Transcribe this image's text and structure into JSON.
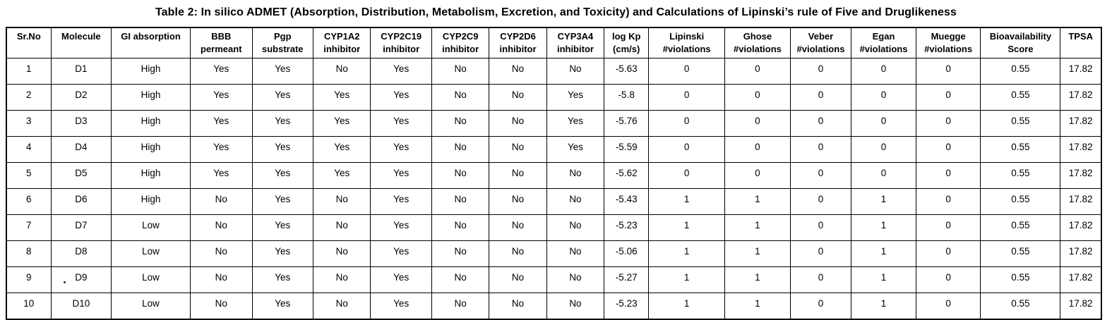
{
  "caption": "Table 2: In silico ADMET (Absorption, Distribution, Metabolism, Excretion, and Toxicity) and Calculations of Lipinski’s rule of Five and Druglikeness",
  "table": {
    "columns": [
      {
        "lines": [
          "Sr.No"
        ]
      },
      {
        "lines": [
          "Molecule"
        ]
      },
      {
        "lines": [
          "GI absorption"
        ]
      },
      {
        "lines": [
          "BBB",
          "permeant"
        ]
      },
      {
        "lines": [
          "Pgp",
          "substrate"
        ]
      },
      {
        "lines": [
          "CYP1A2",
          "inhibitor"
        ]
      },
      {
        "lines": [
          "CYP2C19",
          "inhibitor"
        ]
      },
      {
        "lines": [
          "CYP2C9",
          "inhibitor"
        ]
      },
      {
        "lines": [
          "CYP2D6",
          "inhibitor"
        ]
      },
      {
        "lines": [
          "CYP3A4",
          "inhibitor"
        ]
      },
      {
        "lines": [
          "log Kp",
          "(cm/s)"
        ]
      },
      {
        "lines": [
          "Lipinski",
          "#violations"
        ]
      },
      {
        "lines": [
          "Ghose",
          "#violations"
        ]
      },
      {
        "lines": [
          "Veber",
          "#violations"
        ]
      },
      {
        "lines": [
          "Egan",
          "#violations"
        ]
      },
      {
        "lines": [
          "Muegge",
          "#violations"
        ]
      },
      {
        "lines": [
          "Bioavailability",
          "Score"
        ]
      },
      {
        "lines": [
          "TPSA"
        ]
      }
    ],
    "rows": [
      [
        "1",
        "D1",
        "High",
        "Yes",
        "Yes",
        "No",
        "Yes",
        "No",
        "No",
        "No",
        "-5.63",
        "0",
        "0",
        "0",
        "0",
        "0",
        "0.55",
        "17.82"
      ],
      [
        "2",
        "D2",
        "High",
        "Yes",
        "Yes",
        "Yes",
        "Yes",
        "No",
        "No",
        "Yes",
        "-5.8",
        "0",
        "0",
        "0",
        "0",
        "0",
        "0.55",
        "17.82"
      ],
      [
        "3",
        "D3",
        "High",
        "Yes",
        "Yes",
        "Yes",
        "Yes",
        "No",
        "No",
        "Yes",
        "-5.76",
        "0",
        "0",
        "0",
        "0",
        "0",
        "0.55",
        "17.82"
      ],
      [
        "4",
        "D4",
        "High",
        "Yes",
        "Yes",
        "Yes",
        "Yes",
        "No",
        "No",
        "Yes",
        "-5.59",
        "0",
        "0",
        "0",
        "0",
        "0",
        "0.55",
        "17.82"
      ],
      [
        "5",
        "D5",
        "High",
        "Yes",
        "Yes",
        "Yes",
        "Yes",
        "No",
        "No",
        "No",
        "-5.62",
        "0",
        "0",
        "0",
        "0",
        "0",
        "0.55",
        "17.82"
      ],
      [
        "6",
        "D6",
        "High",
        "No",
        "Yes",
        "No",
        "Yes",
        "No",
        "No",
        "No",
        "-5.43",
        "1",
        "1",
        "0",
        "1",
        "0",
        "0.55",
        "17.82"
      ],
      [
        "7",
        "D7",
        "Low",
        "No",
        "Yes",
        "No",
        "Yes",
        "No",
        "No",
        "No",
        "-5.23",
        "1",
        "1",
        "0",
        "1",
        "0",
        "0.55",
        "17.82"
      ],
      [
        "8",
        "D8",
        "Low",
        "No",
        "Yes",
        "No",
        "Yes",
        "No",
        "No",
        "No",
        "-5.06",
        "1",
        "1",
        "0",
        "1",
        "0",
        "0.55",
        "17.82"
      ],
      [
        "9",
        "D9",
        "Low",
        "No",
        "Yes",
        "No",
        "Yes",
        "No",
        "No",
        "No",
        "-5.27",
        "1",
        "1",
        "0",
        "1",
        "0",
        "0.55",
        "17.82"
      ],
      [
        "10",
        "D10",
        "Low",
        "No",
        "Yes",
        "No",
        "Yes",
        "No",
        "No",
        "No",
        "-5.23",
        "1",
        "1",
        "0",
        "1",
        "0",
        "0.55",
        "17.82"
      ]
    ]
  }
}
